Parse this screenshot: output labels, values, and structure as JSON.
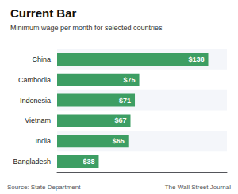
{
  "chart_data": {
    "type": "bar",
    "orientation": "horizontal",
    "title": "Current Bar",
    "subtitle": "Minimum wage per month for selected countries",
    "annotations": [
      "Source: State Department",
      "The Wall Street Journal"
    ],
    "categories": [
      "China",
      "Cambodia",
      "Indonesia",
      "Vietnam",
      "India",
      "Bangladesh"
    ],
    "values": [
      138,
      75,
      71,
      67,
      65,
      38
    ],
    "value_labels": [
      "$138",
      "$75",
      "$71",
      "$67",
      "$65",
      "$38"
    ],
    "color": "#3d9e63",
    "xlim": [
      0,
      155
    ],
    "tick_labels": false,
    "grid": false,
    "data_labels": true
  }
}
